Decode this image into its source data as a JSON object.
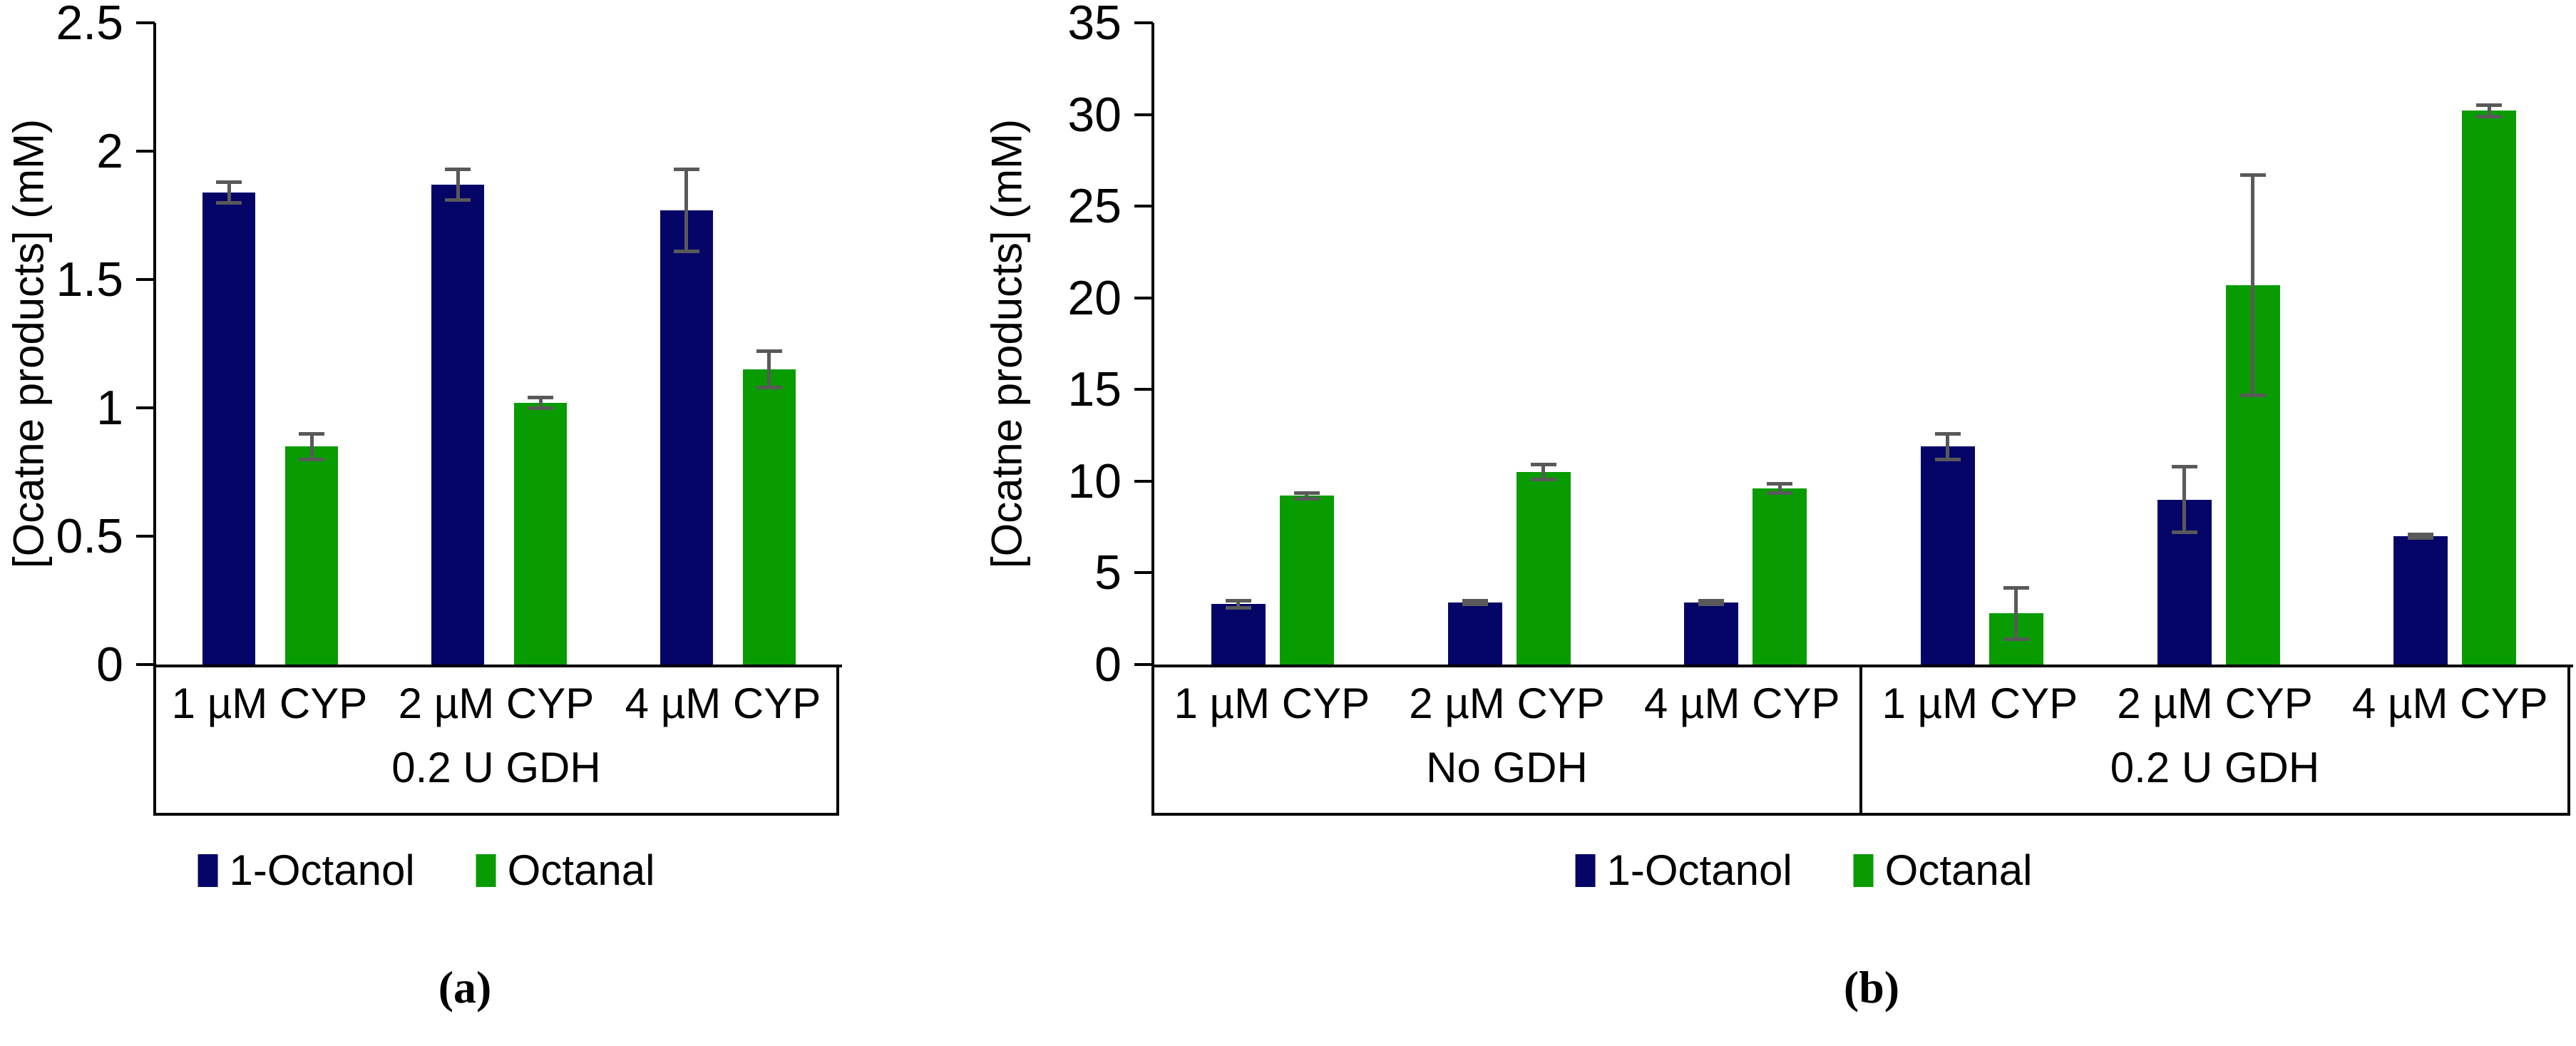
{
  "figure": {
    "background": "#ffffff",
    "error_bar_color": "#595959",
    "axis_color": "#000000"
  },
  "chart_data": [
    {
      "id": "a",
      "type": "bar",
      "title": "",
      "ylabel": "[Ocatne products] (mM)",
      "xlabel": "",
      "ylim": [
        0,
        2.5
      ],
      "ystep": 0.5,
      "ytick_values": [
        0,
        0.5,
        1,
        1.5,
        2,
        2.5
      ],
      "ytick_labels": [
        "0",
        "0.5",
        "1",
        "1.5",
        "2",
        "2.5"
      ],
      "grid": false,
      "legend_position": "bottom",
      "groups": [
        {
          "label": "0.2 U GDH",
          "categories": [
            "1 µM CYP",
            "2 µM CYP",
            "4 µM CYP"
          ]
        }
      ],
      "series": [
        {
          "name": "1-Octanol",
          "color": "#050568",
          "values": [
            1.84,
            1.87,
            1.77
          ],
          "errors": [
            0.04,
            0.06,
            0.16
          ]
        },
        {
          "name": "Octanal",
          "color": "#089c00",
          "values": [
            0.85,
            1.02,
            1.15
          ],
          "errors": [
            0.05,
            0.02,
            0.07
          ]
        }
      ],
      "caption": "(a)"
    },
    {
      "id": "b",
      "type": "bar",
      "title": "",
      "ylabel": "[Ocatne products] (mM)",
      "xlabel": "",
      "ylim": [
        0,
        35
      ],
      "ystep": 5,
      "ytick_values": [
        0,
        5,
        10,
        15,
        20,
        25,
        30,
        35
      ],
      "ytick_labels": [
        "0",
        "5",
        "10",
        "15",
        "20",
        "25",
        "30",
        "35"
      ],
      "grid": false,
      "legend_position": "bottom",
      "groups": [
        {
          "label": "No GDH",
          "categories": [
            "1 µM CYP",
            "2 µM CYP",
            "4 µM CYP"
          ]
        },
        {
          "label": "0.2 U GDH",
          "categories": [
            "1 µM CYP",
            "2 µM CYP",
            "4 µM CYP"
          ]
        }
      ],
      "series": [
        {
          "name": "1-Octanol",
          "color": "#050568",
          "values": [
            3.3,
            3.4,
            3.4,
            11.9,
            9.0,
            7.0
          ],
          "errors": [
            0.2,
            0.1,
            0.1,
            0.7,
            1.8,
            0.1
          ]
        },
        {
          "name": "Octanal",
          "color": "#089c00",
          "values": [
            9.2,
            10.5,
            9.6,
            2.8,
            20.7,
            30.2
          ],
          "errors": [
            0.15,
            0.4,
            0.25,
            1.4,
            6.0,
            0.3
          ]
        }
      ],
      "caption": "(b)"
    }
  ]
}
